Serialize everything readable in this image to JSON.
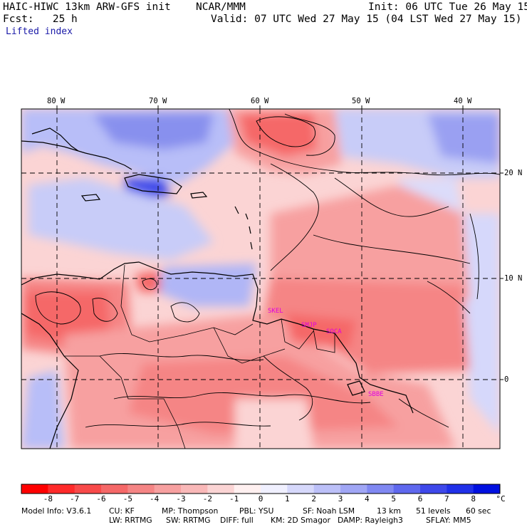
{
  "header": {
    "model_title": "HAIC-HIWC 13km ARW-GFS init",
    "agency": "NCAR/MMM",
    "init": "Init: 06 UTC Tue 26 May 15",
    "fcst": "Fcst:   25 h",
    "valid": "Valid: 07 UTC Wed 27 May 15 (04 LST Wed 27 May 15)",
    "field": "Lifted index"
  },
  "map": {
    "lon_labels": [
      "80 W",
      "70 W",
      "60 W",
      "50 W",
      "40 W"
    ],
    "lat_labels": [
      "20 N",
      "10 N",
      "0"
    ],
    "stations": [
      "SKEL",
      "SMJP",
      "SOCA",
      "SBBE"
    ],
    "colors": {
      "strong_red": "#ee3030",
      "red": "#f57878",
      "light_red": "#fbc0c0",
      "white": "#ffffff",
      "light_blue": "#c8ccf8",
      "blue": "#8890ee",
      "dark_blue": "#2030e8"
    }
  },
  "colorbar": {
    "labels": [
      "-8",
      "-7",
      "-6",
      "-5",
      "-4",
      "-3",
      "-2",
      "-1",
      "0",
      "1",
      "2",
      "3",
      "4",
      "5",
      "6",
      "7",
      "8"
    ],
    "unit": "°C",
    "colors": [
      "#ff0000",
      "#ff2a2a",
      "#f84a4a",
      "#f56868",
      "#f58585",
      "#f7a0a0",
      "#f9b8b8",
      "#fbd4d4",
      "#fff0f0",
      "#f0f0ff",
      "#d6d8fb",
      "#bcc0f8",
      "#a0a6f5",
      "#8088f2",
      "#5f68ee",
      "#3e48ea",
      "#2030e8",
      "#0010e0"
    ]
  },
  "footer": {
    "line1": [
      "Model Info: V3.6.1",
      "CU: KF",
      "MP: Thompson",
      "PBL: YSU",
      "SF: Noah LSM",
      "13 km",
      "51 levels",
      "60 sec"
    ],
    "line2": [
      "LW: RRTMG",
      "SW: RRTMG",
      "DIFF: full",
      "KM: 2D Smagor",
      "DAMP: Rayleigh3",
      "SFLAY: MM5"
    ]
  }
}
